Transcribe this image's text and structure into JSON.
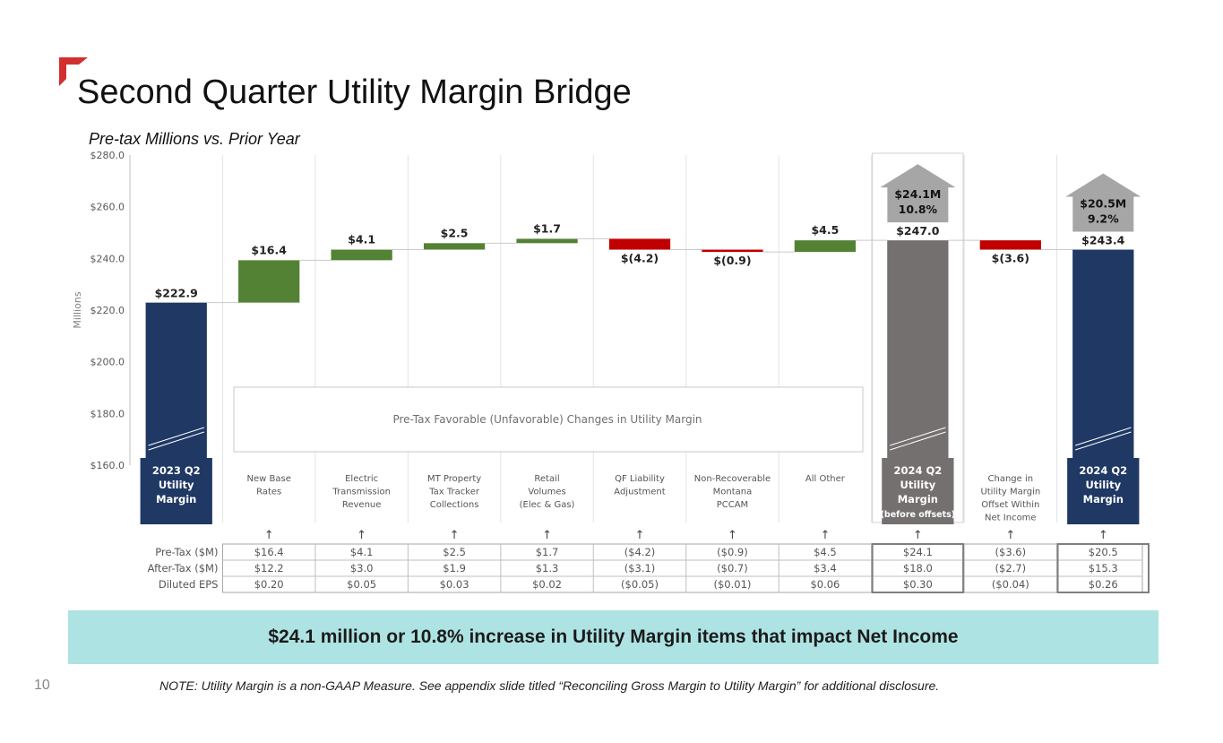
{
  "page": {
    "title": "Second Quarter Utility Margin Bridge",
    "subtitle": "Pre-tax Millions vs. Prior Year",
    "banner": "$24.1 million or 10.8% increase in Utility Margin items that impact Net Income",
    "page_number": "10",
    "note": "NOTE: Utility Margin is a non-GAAP Measure.   See appendix slide titled “Reconciling Gross Margin to Utility Margin” for additional disclosure."
  },
  "colors": {
    "accent": "#d32f2f",
    "navy": "#1f3864",
    "green": "#548235",
    "red": "#c00000",
    "gray_bar": "#757070",
    "arrow_gray": "#a6a6a6",
    "banner": "#aee3e3"
  },
  "chart_data": {
    "type": "bar",
    "subtype": "waterfall",
    "ylabel": "Millions",
    "ylim": [
      160,
      280
    ],
    "yticks": [
      160,
      180,
      200,
      220,
      240,
      260,
      280
    ],
    "ytick_labels": [
      "$160.0",
      "$180.0",
      "$200.0",
      "$220.0",
      "$240.0",
      "$260.0",
      "$280.0"
    ],
    "inner_label": "Pre-Tax Favorable (Unfavorable) Changes in Utility Margin",
    "categories": [
      {
        "label": [
          "2023 Q2",
          "Utility",
          "Margin"
        ],
        "kind": "total",
        "value": 222.9,
        "value_label": "$222.9"
      },
      {
        "label": [
          "New Base",
          "Rates"
        ],
        "kind": "increase",
        "value": 16.4,
        "value_label": "$16.4"
      },
      {
        "label": [
          "Electric",
          "Transmission",
          "Revenue"
        ],
        "kind": "increase",
        "value": 4.1,
        "value_label": "$4.1"
      },
      {
        "label": [
          "MT Property",
          "Tax Tracker",
          "Collections"
        ],
        "kind": "increase",
        "value": 2.5,
        "value_label": "$2.5"
      },
      {
        "label": [
          "Retail",
          "Volumes",
          "(Elec & Gas)"
        ],
        "kind": "increase",
        "value": 1.7,
        "value_label": "$1.7"
      },
      {
        "label": [
          "QF Liability",
          "Adjustment"
        ],
        "kind": "decrease",
        "value": -4.2,
        "value_label": "$(4.2)"
      },
      {
        "label": [
          "Non-Recoverable",
          "Montana",
          "PCCAM"
        ],
        "kind": "decrease",
        "value": -0.9,
        "value_label": "$(0.9)"
      },
      {
        "label": [
          "All Other"
        ],
        "kind": "increase",
        "value": 4.5,
        "value_label": "$4.5"
      },
      {
        "label": [
          "2024 Q2",
          "Utility",
          "Margin",
          "(before offsets)"
        ],
        "kind": "subtotal",
        "value": 247.0,
        "value_label": "$247.0",
        "callout": [
          "$24.1M",
          "10.8%"
        ]
      },
      {
        "label": [
          "Change in",
          "Utility Margin",
          "Offset Within",
          "Net Income"
        ],
        "kind": "decrease",
        "value": -3.6,
        "value_label": "$(3.6)"
      },
      {
        "label": [
          "2024 Q2",
          "Utility",
          "Margin"
        ],
        "kind": "total",
        "value": 243.4,
        "value_label": "$243.4",
        "callout": [
          "$20.5M",
          "9.2%"
        ]
      }
    ],
    "table": {
      "rows": [
        {
          "label": "Pre-Tax ($M)",
          "values": [
            "$16.4",
            "$4.1",
            "$2.5",
            "$1.7",
            "($4.2)",
            "($0.9)",
            "$4.5",
            "$24.1",
            "($3.6)",
            "$20.5"
          ]
        },
        {
          "label": "After-Tax ($M)",
          "values": [
            "$12.2",
            "$3.0",
            "$1.9",
            "$1.3",
            "($3.1)",
            "($0.7)",
            "$3.4",
            "$18.0",
            "($2.7)",
            "$15.3"
          ]
        },
        {
          "label": "Diluted EPS",
          "values": [
            "$0.20",
            "$0.05",
            "$0.03",
            "$0.02",
            "($0.05)",
            "($0.01)",
            "$0.06",
            "$0.30",
            "($0.04)",
            "$0.26"
          ]
        }
      ]
    }
  }
}
